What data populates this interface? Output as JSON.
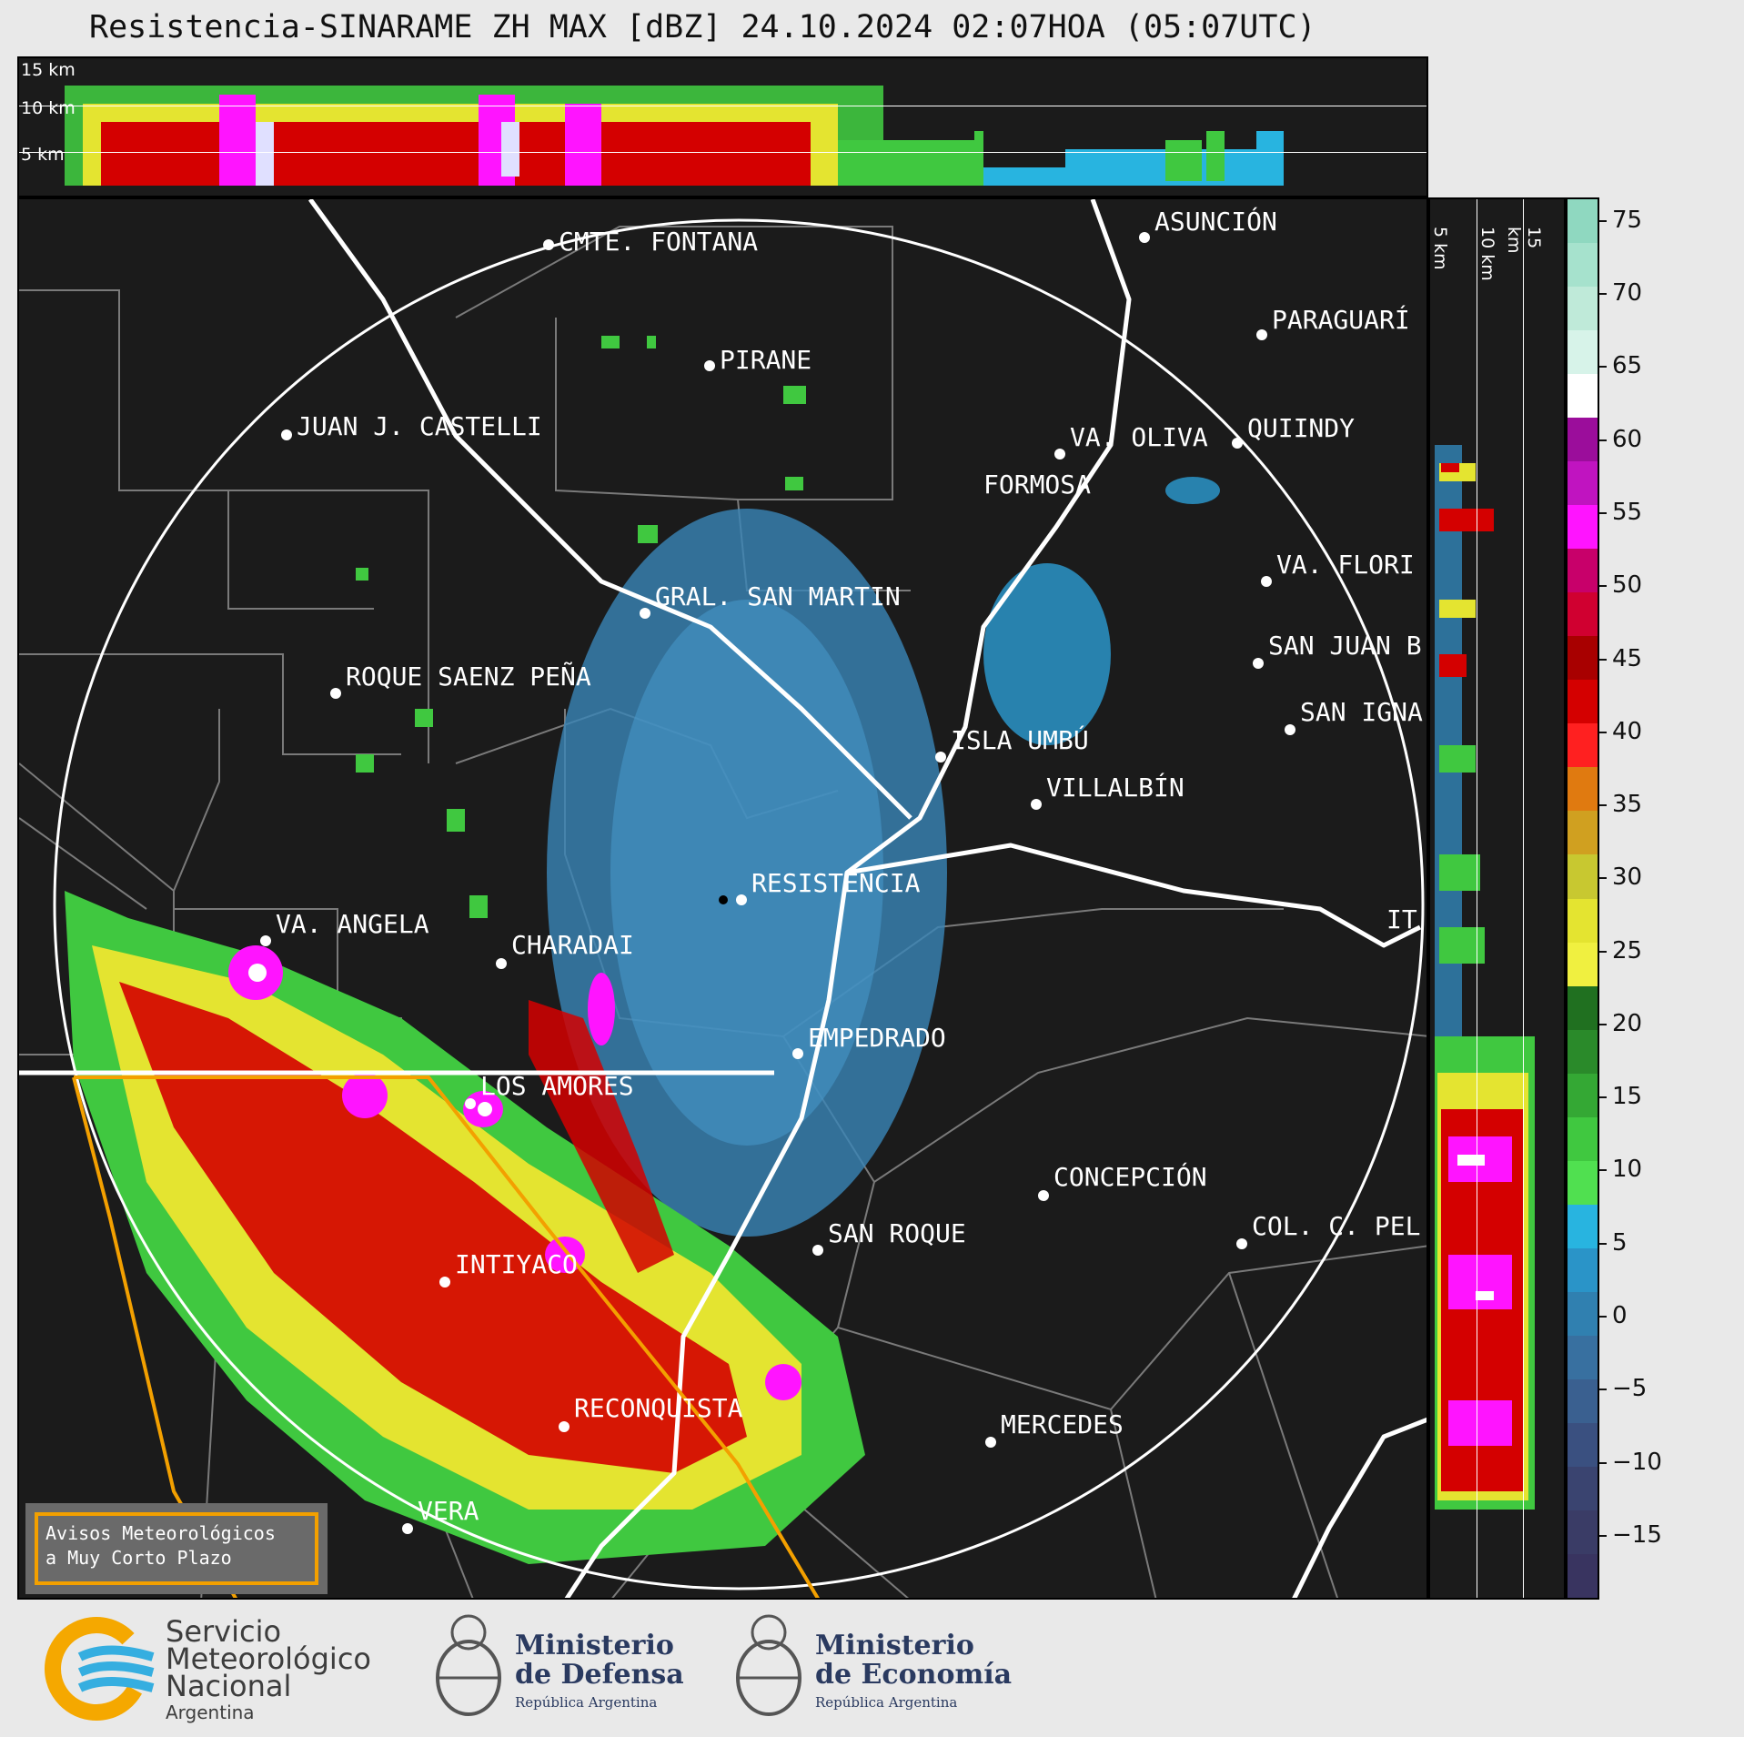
{
  "title": "Resistencia-SINARAME ZH MAX [dBZ] 24.10.2024 02:07HOA (05:07UTC)",
  "top_section": {
    "km_labels": [
      "15 km",
      "10 km",
      "5 km"
    ]
  },
  "right_section": {
    "km_labels": [
      "5 km",
      "10 km",
      "15 km"
    ]
  },
  "colorbar": {
    "unit": "dBZ",
    "ticks": [
      "75",
      "70",
      "65",
      "60",
      "55",
      "50",
      "45",
      "40",
      "35",
      "30",
      "25",
      "20",
      "15",
      "10",
      "5",
      "0",
      "−5",
      "−10",
      "−15"
    ],
    "colors": [
      "#8fd8c0",
      "#a6e2cd",
      "#bfead9",
      "#d7f3e9",
      "#ffffff",
      "#9b0d9b",
      "#c014c0",
      "#ff14ff",
      "#c8006a",
      "#d00030",
      "#a80000",
      "#d40000",
      "#ff2020",
      "#e07a10",
      "#d0a020",
      "#c8c830",
      "#e4e430",
      "#f0f040",
      "#207020",
      "#2a8a2a",
      "#34a834",
      "#40c840",
      "#50e050",
      "#28b4e0",
      "#2a94c8",
      "#3080b0",
      "#3870a0",
      "#3a6090",
      "#3a5080",
      "#3a4470",
      "#3a3c66",
      "#393460"
    ]
  },
  "cities": [
    {
      "name": "CMTE. FONTANA"
    },
    {
      "name": "PIRANE"
    },
    {
      "name": "JUAN J. CASTELLI"
    },
    {
      "name": "ASUNCIÓN"
    },
    {
      "name": "PARAGUARÍ"
    },
    {
      "name": "VA. OLIVA"
    },
    {
      "name": "QUIINDY"
    },
    {
      "name": "FORMOSA"
    },
    {
      "name": "VA. FLORI"
    },
    {
      "name": "GRAL. SAN MARTIN"
    },
    {
      "name": "SAN JUAN B"
    },
    {
      "name": "ROQUE SAENZ PEÑA"
    },
    {
      "name": "SAN IGNA"
    },
    {
      "name": "ISLA UMBÚ"
    },
    {
      "name": "VILLALBÍN"
    },
    {
      "name": "RESISTENCIA"
    },
    {
      "name": "VA. ANGELA"
    },
    {
      "name": "CHARADAI"
    },
    {
      "name": "IT"
    },
    {
      "name": "EMPEDRADO"
    },
    {
      "name": "LOS AMORES"
    },
    {
      "name": "CONCEPCIÓN"
    },
    {
      "name": "SAN ROQUE"
    },
    {
      "name": "COL. C. PEL"
    },
    {
      "name": "INTIYACO"
    },
    {
      "name": "RECONQUISTA"
    },
    {
      "name": "MERCEDES"
    },
    {
      "name": "VERA"
    }
  ],
  "alert_box": {
    "line1": "Avisos Meteorológicos",
    "line2": "a Muy Corto Plazo"
  },
  "footer": {
    "smn": {
      "line1": "Servicio",
      "line2": "Meteorológico",
      "line3": "Nacional",
      "line4": "Argentina"
    },
    "defensa": {
      "line1": "Ministerio",
      "line2": "de Defensa",
      "sub": "República Argentina"
    },
    "economia": {
      "line1": "Ministerio",
      "line2": "de Economía",
      "sub": "República Argentina"
    }
  }
}
